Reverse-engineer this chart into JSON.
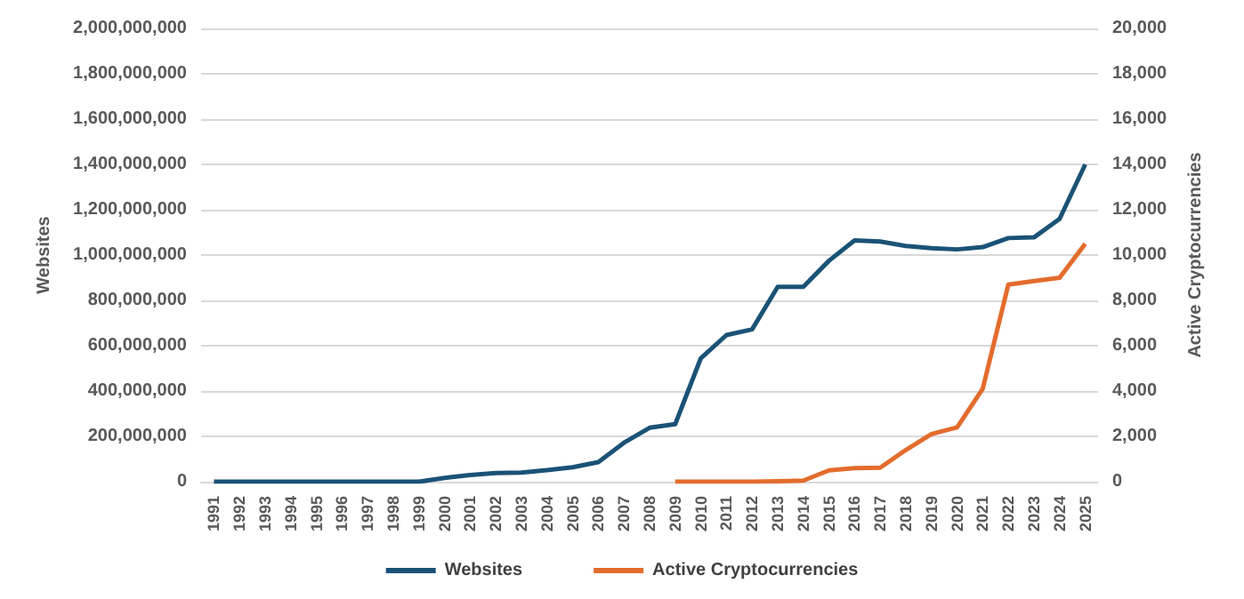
{
  "chart_data": {
    "type": "line",
    "ylabel": "Websites",
    "y2label": "Active Cryptocurrencies",
    "categories": [
      "1991",
      "1992",
      "1993",
      "1994",
      "1995",
      "1996",
      "1997",
      "1998",
      "1999",
      "2000",
      "2001",
      "2002",
      "2003",
      "2004",
      "2005",
      "2006",
      "2007",
      "2008",
      "2009",
      "2010",
      "2011",
      "2012",
      "2013",
      "2014",
      "2015",
      "2016",
      "2017",
      "2018",
      "2019",
      "2020",
      "2021",
      "2022",
      "2023",
      "2024",
      "2025"
    ],
    "series": [
      {
        "name": "Websites",
        "color": "#1a5276",
        "values": [
          0,
          0,
          0,
          0,
          0,
          0,
          0,
          0,
          0,
          17000000,
          29000000,
          38000000,
          40000000,
          51000000,
          64000000,
          86000000,
          172000000,
          238000000,
          254000000,
          545000000,
          647000000,
          672000000,
          860000000,
          860000000,
          975000000,
          1065000000,
          1060000000,
          1040000000,
          1030000000,
          1025000000,
          1035000000,
          1075000000,
          1078000000,
          1160000000,
          1400000000
        ]
      },
      {
        "name": "Active Cryptocurrencies",
        "color": "#e36c2c",
        "axis": "y2",
        "values": [
          null,
          null,
          null,
          null,
          null,
          null,
          null,
          null,
          null,
          null,
          null,
          null,
          null,
          null,
          null,
          null,
          null,
          null,
          0,
          0,
          0,
          0,
          20,
          50,
          500,
          600,
          620,
          1400,
          2100,
          2400,
          4100,
          8700,
          8850,
          9000,
          10500
        ]
      }
    ],
    "ylim": [
      0,
      2000000000
    ],
    "yticks": [
      0,
      {
        "value": 200000000,
        "label": "200,000,000"
      },
      {
        "value": 400000000,
        "label": "400,000,000"
      },
      {
        "value": 600000000,
        "label": "600,000,000"
      },
      {
        "value": 800000000,
        "label": "800,000,000"
      },
      {
        "value": 1000000000,
        "label": "1,000,000,000"
      },
      {
        "value": 1200000000,
        "label": "1,200,000,000"
      },
      {
        "value": 1400000000,
        "label": "1,400,000,000"
      },
      {
        "value": 1600000000,
        "label": "1,600,000,000"
      },
      {
        "value": 1800000000,
        "label": "1,800,000,000"
      },
      {
        "value": 2000000000,
        "label": "2,000,000,000"
      }
    ],
    "y2lim": [
      0,
      20000
    ],
    "y2ticks": [
      0,
      {
        "value": 2000,
        "label": "2,000"
      },
      {
        "value": 4000,
        "label": "4,000"
      },
      {
        "value": 6000,
        "label": "6,000"
      },
      {
        "value": 8000,
        "label": "8,000"
      },
      {
        "value": 10000,
        "label": "10,000"
      },
      {
        "value": 12000,
        "label": "12,000"
      },
      {
        "value": 14000,
        "label": "14,000"
      },
      {
        "value": 16000,
        "label": "16,000"
      },
      {
        "value": 18000,
        "label": "18,000"
      },
      {
        "value": 20000,
        "label": "20,000"
      }
    ],
    "grid": "y",
    "legend": "bottom",
    "marker": "none",
    "line_style": "solid"
  }
}
